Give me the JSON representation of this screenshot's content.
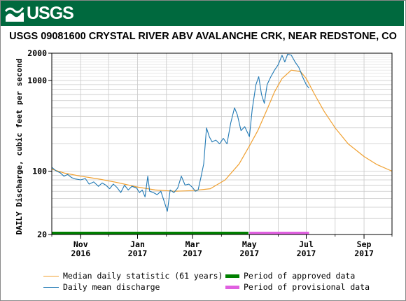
{
  "header": {
    "logo_text": "USGS"
  },
  "chart_data": {
    "type": "line",
    "title": "USGS 09081600 CRYSTAL RIVER ABV AVALANCHE CRK, NEAR REDSTONE, CO",
    "ylabel": "DAILY Discharge, cubic feet per second",
    "y_scale": "log",
    "ylim": [
      20,
      2000
    ],
    "y_ticks": [
      {
        "value": 20,
        "label": "20"
      },
      {
        "value": 100,
        "label": "100"
      },
      {
        "value": 1000,
        "label": "1000"
      },
      {
        "value": 2000,
        "label": "2000"
      }
    ],
    "x_range_days": [
      "2016-10-01",
      "2017-10-01"
    ],
    "x_ticks": [
      {
        "date": "2016-11-01",
        "label1": "Nov",
        "label2": "2016"
      },
      {
        "date": "2017-01-01",
        "label1": "Jan",
        "label2": "2017"
      },
      {
        "date": "2017-03-01",
        "label1": "Mar",
        "label2": "2017"
      },
      {
        "date": "2017-05-01",
        "label1": "May",
        "label2": "2017"
      },
      {
        "date": "2017-07-01",
        "label1": "Jul",
        "label2": "2017"
      },
      {
        "date": "2017-09-01",
        "label1": "Sep",
        "label2": "2017"
      }
    ],
    "grid": true,
    "series": [
      {
        "name": "Median daily statistic (61 years)",
        "color": "#f0a030",
        "points": [
          [
            "2016-10-01",
            105
          ],
          [
            "2016-10-15",
            95
          ],
          [
            "2016-11-01",
            88
          ],
          [
            "2016-11-20",
            82
          ],
          [
            "2016-12-10",
            75
          ],
          [
            "2016-12-31",
            67
          ],
          [
            "2017-01-20",
            62
          ],
          [
            "2017-02-10",
            60
          ],
          [
            "2017-03-01",
            61
          ],
          [
            "2017-03-20",
            64
          ],
          [
            "2017-04-05",
            80
          ],
          [
            "2017-04-20",
            120
          ],
          [
            "2017-05-01",
            190
          ],
          [
            "2017-05-10",
            280
          ],
          [
            "2017-05-20",
            480
          ],
          [
            "2017-05-28",
            750
          ],
          [
            "2017-06-05",
            1050
          ],
          [
            "2017-06-15",
            1300
          ],
          [
            "2017-06-25",
            1250
          ],
          [
            "2017-07-01",
            1050
          ],
          [
            "2017-07-10",
            700
          ],
          [
            "2017-07-20",
            460
          ],
          [
            "2017-08-01",
            300
          ],
          [
            "2017-08-15",
            200
          ],
          [
            "2017-09-01",
            145
          ],
          [
            "2017-09-15",
            118
          ],
          [
            "2017-10-01",
            100
          ]
        ]
      },
      {
        "name": "Daily mean discharge",
        "color": "#1f78b4",
        "points": [
          [
            "2016-10-01",
            110
          ],
          [
            "2016-10-06",
            100
          ],
          [
            "2016-10-10",
            96
          ],
          [
            "2016-10-14",
            88
          ],
          [
            "2016-10-18",
            92
          ],
          [
            "2016-10-22",
            85
          ],
          [
            "2016-10-26",
            82
          ],
          [
            "2016-11-01",
            80
          ],
          [
            "2016-11-06",
            83
          ],
          [
            "2016-11-10",
            72
          ],
          [
            "2016-11-15",
            76
          ],
          [
            "2016-11-20",
            68
          ],
          [
            "2016-11-24",
            74
          ],
          [
            "2016-11-28",
            70
          ],
          [
            "2016-12-02",
            64
          ],
          [
            "2016-12-06",
            72
          ],
          [
            "2016-12-10",
            66
          ],
          [
            "2016-12-14",
            58
          ],
          [
            "2016-12-18",
            70
          ],
          [
            "2016-12-22",
            62
          ],
          [
            "2016-12-26",
            68
          ],
          [
            "2016-12-31",
            65
          ],
          [
            "2017-01-03",
            58
          ],
          [
            "2017-01-06",
            62
          ],
          [
            "2017-01-09",
            52
          ],
          [
            "2017-01-12",
            88
          ],
          [
            "2017-01-14",
            60
          ],
          [
            "2017-01-18",
            58
          ],
          [
            "2017-01-22",
            55
          ],
          [
            "2017-01-26",
            60
          ],
          [
            "2017-01-30",
            45
          ],
          [
            "2017-02-02",
            36
          ],
          [
            "2017-02-05",
            62
          ],
          [
            "2017-02-09",
            58
          ],
          [
            "2017-02-13",
            65
          ],
          [
            "2017-02-17",
            88
          ],
          [
            "2017-02-21",
            70
          ],
          [
            "2017-02-25",
            72
          ],
          [
            "2017-03-01",
            66
          ],
          [
            "2017-03-04",
            60
          ],
          [
            "2017-03-07",
            62
          ],
          [
            "2017-03-10",
            85
          ],
          [
            "2017-03-13",
            120
          ],
          [
            "2017-03-16",
            300
          ],
          [
            "2017-03-19",
            240
          ],
          [
            "2017-03-22",
            210
          ],
          [
            "2017-03-26",
            220
          ],
          [
            "2017-03-30",
            200
          ],
          [
            "2017-04-03",
            230
          ],
          [
            "2017-04-07",
            200
          ],
          [
            "2017-04-11",
            340
          ],
          [
            "2017-04-15",
            500
          ],
          [
            "2017-04-18",
            420
          ],
          [
            "2017-04-22",
            280
          ],
          [
            "2017-04-26",
            310
          ],
          [
            "2017-05-01",
            240
          ],
          [
            "2017-05-04",
            480
          ],
          [
            "2017-05-08",
            900
          ],
          [
            "2017-05-11",
            1100
          ],
          [
            "2017-05-14",
            700
          ],
          [
            "2017-05-17",
            560
          ],
          [
            "2017-05-20",
            900
          ],
          [
            "2017-05-24",
            1100
          ],
          [
            "2017-05-28",
            1300
          ],
          [
            "2017-06-01",
            1500
          ],
          [
            "2017-06-05",
            1900
          ],
          [
            "2017-06-08",
            1600
          ],
          [
            "2017-06-11",
            1950
          ],
          [
            "2017-06-15",
            1900
          ],
          [
            "2017-06-19",
            1600
          ],
          [
            "2017-06-23",
            1400
          ],
          [
            "2017-06-27",
            1100
          ],
          [
            "2017-07-01",
            900
          ],
          [
            "2017-07-04",
            820
          ]
        ]
      }
    ],
    "approval_bars": [
      {
        "name": "Period of approved data",
        "color": "#008000",
        "start": "2016-10-01",
        "end": "2017-04-30"
      },
      {
        "name": "Period of provisional data",
        "color": "#e060e0",
        "start": "2017-05-01",
        "end": "2017-07-04"
      }
    ]
  },
  "legend": {
    "median_label": "Median daily statistic (61 years)",
    "daily_label": "Daily mean discharge",
    "approved_label": "Period of approved data",
    "provisional_label": "Period of provisional data"
  }
}
